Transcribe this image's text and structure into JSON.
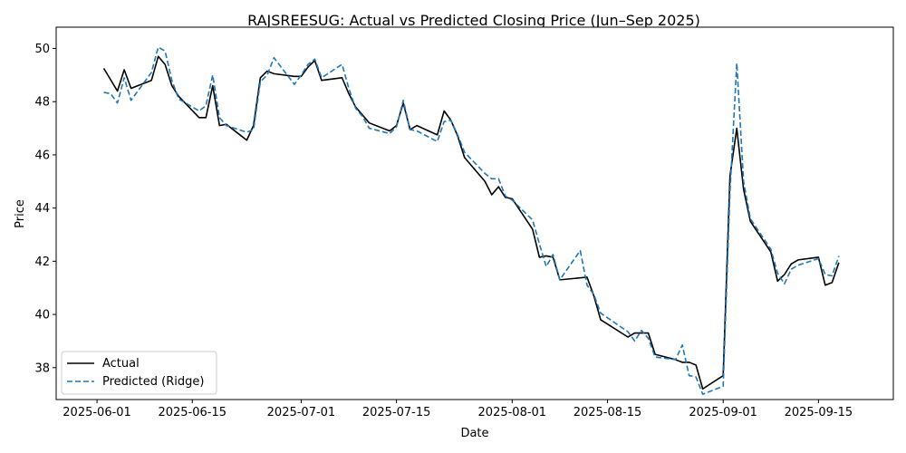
{
  "chart_data": {
    "type": "line",
    "title": "RAJSREESUG: Actual vs Predicted Closing Price (Jun–Sep 2025)",
    "xlabel": "Date",
    "ylabel": "Price",
    "xlim": [
      "2025-05-26",
      "2025-09-26"
    ],
    "ylim": [
      36.8,
      50.8
    ],
    "x_ticks": [
      {
        "date": "2025-06-01",
        "label": "2025-06-01"
      },
      {
        "date": "2025-06-15",
        "label": "2025-06-15"
      },
      {
        "date": "2025-07-01",
        "label": "2025-07-01"
      },
      {
        "date": "2025-07-15",
        "label": "2025-07-15"
      },
      {
        "date": "2025-08-01",
        "label": "2025-08-01"
      },
      {
        "date": "2025-08-15",
        "label": "2025-08-15"
      },
      {
        "date": "2025-09-01",
        "label": "2025-09-01"
      },
      {
        "date": "2025-09-15",
        "label": "2025-09-15"
      }
    ],
    "y_ticks": [
      {
        "value": 38,
        "label": "38"
      },
      {
        "value": 40,
        "label": "40"
      },
      {
        "value": 42,
        "label": "42"
      },
      {
        "value": 44,
        "label": "44"
      },
      {
        "value": 46,
        "label": "46"
      },
      {
        "value": 48,
        "label": "48"
      },
      {
        "value": 50,
        "label": "50"
      }
    ],
    "grid": false,
    "legend_position": "lower-left",
    "series": [
      {
        "name": "Actual",
        "color": "#000000",
        "style": "solid",
        "points": [
          [
            "2025-06-02",
            49.25
          ],
          [
            "2025-06-04",
            48.4
          ],
          [
            "2025-06-05",
            49.2
          ],
          [
            "2025-06-06",
            48.5
          ],
          [
            "2025-06-09",
            48.8
          ],
          [
            "2025-06-10",
            49.7
          ],
          [
            "2025-06-11",
            49.4
          ],
          [
            "2025-06-12",
            48.6
          ],
          [
            "2025-06-13",
            48.2
          ],
          [
            "2025-06-16",
            47.4
          ],
          [
            "2025-06-17",
            47.4
          ],
          [
            "2025-06-18",
            48.6
          ],
          [
            "2025-06-19",
            47.1
          ],
          [
            "2025-06-20",
            47.15
          ],
          [
            "2025-06-23",
            46.55
          ],
          [
            "2025-06-24",
            47.1
          ],
          [
            "2025-06-25",
            48.9
          ],
          [
            "2025-06-26",
            49.15
          ],
          [
            "2025-06-27",
            49.05
          ],
          [
            "2025-06-30",
            48.95
          ],
          [
            "2025-07-01",
            48.95
          ],
          [
            "2025-07-02",
            49.3
          ],
          [
            "2025-07-03",
            49.55
          ],
          [
            "2025-07-04",
            48.8
          ],
          [
            "2025-07-07",
            48.9
          ],
          [
            "2025-07-08",
            48.3
          ],
          [
            "2025-07-09",
            47.8
          ],
          [
            "2025-07-10",
            47.5
          ],
          [
            "2025-07-11",
            47.2
          ],
          [
            "2025-07-14",
            46.9
          ],
          [
            "2025-07-15",
            47.1
          ],
          [
            "2025-07-16",
            47.95
          ],
          [
            "2025-07-17",
            46.95
          ],
          [
            "2025-07-18",
            47.1
          ],
          [
            "2025-07-21",
            46.75
          ],
          [
            "2025-07-22",
            47.65
          ],
          [
            "2025-07-23",
            47.3
          ],
          [
            "2025-07-24",
            46.7
          ],
          [
            "2025-07-25",
            45.9
          ],
          [
            "2025-07-28",
            45.0
          ],
          [
            "2025-07-29",
            44.5
          ],
          [
            "2025-07-30",
            44.8
          ],
          [
            "2025-07-31",
            44.4
          ],
          [
            "2025-08-01",
            44.35
          ],
          [
            "2025-08-04",
            43.2
          ],
          [
            "2025-08-05",
            42.15
          ],
          [
            "2025-08-06",
            42.2
          ],
          [
            "2025-08-07",
            42.15
          ],
          [
            "2025-08-08",
            41.3
          ],
          [
            "2025-08-12",
            41.4
          ],
          [
            "2025-08-13",
            40.7
          ],
          [
            "2025-08-14",
            39.8
          ],
          [
            "2025-08-18",
            39.15
          ],
          [
            "2025-08-19",
            39.3
          ],
          [
            "2025-08-20",
            39.3
          ],
          [
            "2025-08-21",
            39.3
          ],
          [
            "2025-08-22",
            38.5
          ],
          [
            "2025-08-25",
            38.3
          ],
          [
            "2025-08-26",
            38.2
          ],
          [
            "2025-08-27",
            38.2
          ],
          [
            "2025-08-28",
            38.1
          ],
          [
            "2025-08-29",
            37.2
          ],
          [
            "2025-09-01",
            37.7
          ],
          [
            "2025-09-02",
            45.2
          ],
          [
            "2025-09-03",
            47.0
          ],
          [
            "2025-09-04",
            44.7
          ],
          [
            "2025-09-05",
            43.5
          ],
          [
            "2025-09-08",
            42.35
          ],
          [
            "2025-09-09",
            41.25
          ],
          [
            "2025-09-10",
            41.5
          ],
          [
            "2025-09-11",
            41.9
          ],
          [
            "2025-09-12",
            42.05
          ],
          [
            "2025-09-15",
            42.15
          ],
          [
            "2025-09-16",
            41.1
          ],
          [
            "2025-09-17",
            41.2
          ],
          [
            "2025-09-18",
            41.95
          ]
        ]
      },
      {
        "name": "Predicted (Ridge)",
        "color": "#1f77b4",
        "style": "dashed",
        "points": [
          [
            "2025-06-02",
            48.35
          ],
          [
            "2025-06-03",
            48.3
          ],
          [
            "2025-06-04",
            47.95
          ],
          [
            "2025-06-05",
            48.9
          ],
          [
            "2025-06-06",
            48.05
          ],
          [
            "2025-06-09",
            49.1
          ],
          [
            "2025-06-10",
            50.05
          ],
          [
            "2025-06-11",
            49.9
          ],
          [
            "2025-06-12",
            48.8
          ],
          [
            "2025-06-13",
            48.1
          ],
          [
            "2025-06-16",
            47.65
          ],
          [
            "2025-06-17",
            47.85
          ],
          [
            "2025-06-18",
            49.0
          ],
          [
            "2025-06-19",
            47.4
          ],
          [
            "2025-06-20",
            47.1
          ],
          [
            "2025-06-23",
            46.85
          ],
          [
            "2025-06-24",
            46.95
          ],
          [
            "2025-06-25",
            48.75
          ],
          [
            "2025-06-26",
            49.0
          ],
          [
            "2025-06-27",
            49.65
          ],
          [
            "2025-06-30",
            48.65
          ],
          [
            "2025-07-01",
            49.0
          ],
          [
            "2025-07-02",
            49.4
          ],
          [
            "2025-07-03",
            49.6
          ],
          [
            "2025-07-04",
            48.9
          ],
          [
            "2025-07-07",
            49.4
          ],
          [
            "2025-07-08",
            48.5
          ],
          [
            "2025-07-09",
            47.75
          ],
          [
            "2025-07-10",
            47.45
          ],
          [
            "2025-07-11",
            47.0
          ],
          [
            "2025-07-14",
            46.8
          ],
          [
            "2025-07-15",
            47.05
          ],
          [
            "2025-07-16",
            48.05
          ],
          [
            "2025-07-17",
            46.95
          ],
          [
            "2025-07-18",
            46.9
          ],
          [
            "2025-07-21",
            46.5
          ],
          [
            "2025-07-22",
            47.25
          ],
          [
            "2025-07-23",
            47.3
          ],
          [
            "2025-07-24",
            46.75
          ],
          [
            "2025-07-25",
            46.1
          ],
          [
            "2025-07-28",
            45.3
          ],
          [
            "2025-07-29",
            45.1
          ],
          [
            "2025-07-30",
            45.1
          ],
          [
            "2025-07-31",
            44.45
          ],
          [
            "2025-08-01",
            44.3
          ],
          [
            "2025-08-04",
            43.55
          ],
          [
            "2025-08-05",
            42.65
          ],
          [
            "2025-08-06",
            41.8
          ],
          [
            "2025-08-07",
            42.25
          ],
          [
            "2025-08-08",
            41.3
          ],
          [
            "2025-08-11",
            42.4
          ],
          [
            "2025-08-12",
            41.1
          ],
          [
            "2025-08-13",
            40.75
          ],
          [
            "2025-08-14",
            40.05
          ],
          [
            "2025-08-18",
            39.35
          ],
          [
            "2025-08-19",
            39.0
          ],
          [
            "2025-08-20",
            39.4
          ],
          [
            "2025-08-21",
            39.1
          ],
          [
            "2025-08-22",
            38.4
          ],
          [
            "2025-08-25",
            38.3
          ],
          [
            "2025-08-26",
            38.85
          ],
          [
            "2025-08-27",
            37.7
          ],
          [
            "2025-08-28",
            37.65
          ],
          [
            "2025-08-29",
            37.0
          ],
          [
            "2025-09-01",
            37.3
          ],
          [
            "2025-09-02",
            44.6
          ],
          [
            "2025-09-03",
            49.45
          ],
          [
            "2025-09-04",
            45.0
          ],
          [
            "2025-09-05",
            43.6
          ],
          [
            "2025-09-08",
            42.45
          ],
          [
            "2025-09-09",
            41.55
          ],
          [
            "2025-09-10",
            41.15
          ],
          [
            "2025-09-11",
            41.7
          ],
          [
            "2025-09-12",
            41.85
          ],
          [
            "2025-09-15",
            42.1
          ],
          [
            "2025-09-16",
            41.5
          ],
          [
            "2025-09-17",
            41.45
          ],
          [
            "2025-09-18",
            42.2
          ]
        ]
      }
    ]
  }
}
